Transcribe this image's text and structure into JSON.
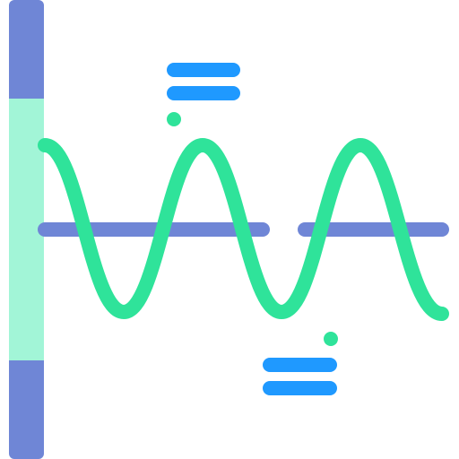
{
  "icon": {
    "name": "sine-wave-signal-icon",
    "colors": {
      "axis": "#6f86d6",
      "axis_highlight": "#a2f5d7",
      "wave": "#2fe39a",
      "marker": "#1f99ff"
    }
  }
}
